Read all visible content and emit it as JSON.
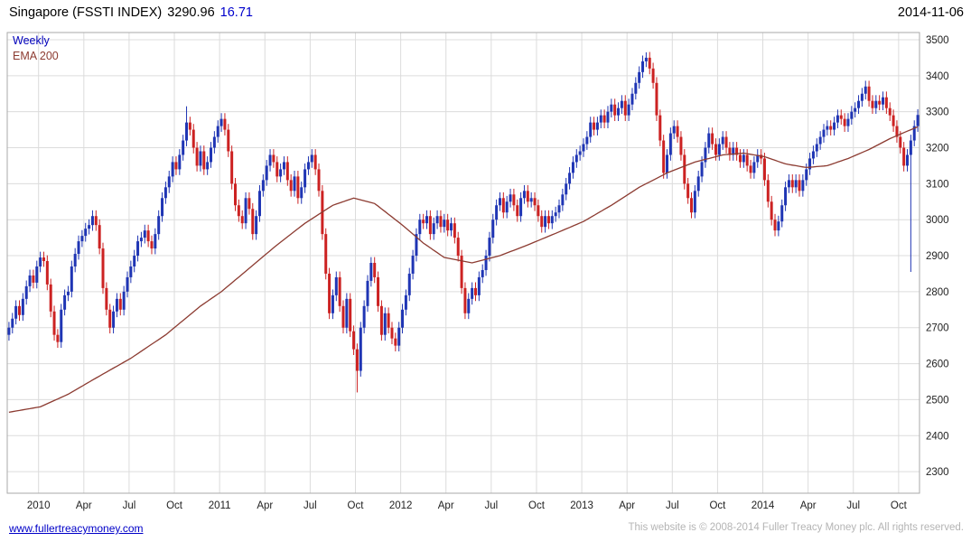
{
  "header": {
    "title": "Singapore (FSSTI INDEX)",
    "price": "3290.96",
    "change": "16.71",
    "date": "2014-11-06"
  },
  "legend": {
    "timeframe": "Weekly",
    "ema": "EMA 200"
  },
  "footer": {
    "link": "www.fullertreacymoney.com",
    "copyright": "This website is © 2008-2014 Fuller Treacy Money plc. All rights reserved."
  },
  "chart_data": {
    "type": "candlestick",
    "title": "Singapore (FSSTI INDEX)",
    "timeframe": "Weekly",
    "last_price": 3290.96,
    "change": 16.71,
    "as_of_date": "2014-11-06",
    "legend_entries": [
      "Weekly",
      "EMA 200"
    ],
    "y_axis": {
      "ticks": [
        2300,
        2400,
        2500,
        2600,
        2700,
        2800,
        2900,
        3000,
        3100,
        3200,
        3300,
        3400,
        3500
      ],
      "range": [
        2240,
        3520
      ],
      "side": "right"
    },
    "x_axis": {
      "tick_labels": [
        "2010",
        "Apr",
        "Jul",
        "Oct",
        "2011",
        "Apr",
        "Jul",
        "Oct",
        "2012",
        "Apr",
        "Jul",
        "Oct",
        "2013",
        "Apr",
        "Jul",
        "Oct",
        "2014",
        "Apr",
        "Jul",
        "Oct"
      ],
      "tick_weeks": [
        9,
        22,
        35,
        48,
        61,
        74,
        87,
        100,
        113,
        126,
        139,
        152,
        165,
        178,
        191,
        204,
        217,
        230,
        243,
        256
      ]
    },
    "grid": true,
    "weeks_total": 262,
    "first_open": 2680,
    "default_wick": 16,
    "weekly_closes": [
      2700,
      2725,
      2760,
      2735,
      2780,
      2815,
      2845,
      2825,
      2870,
      2895,
      2885,
      2820,
      2745,
      2680,
      2660,
      2750,
      2790,
      2800,
      2870,
      2905,
      2940,
      2955,
      2975,
      2985,
      3010,
      2985,
      2920,
      2810,
      2750,
      2700,
      2745,
      2780,
      2750,
      2800,
      2840,
      2870,
      2900,
      2940,
      2950,
      2970,
      2940,
      2920,
      2960,
      3010,
      3060,
      3090,
      3120,
      3160,
      3140,
      3180,
      3220,
      3270,
      3250,
      3200,
      3150,
      3190,
      3140,
      3160,
      3200,
      3230,
      3260,
      3280,
      3250,
      3190,
      3100,
      3040,
      3010,
      2990,
      3060,
      3030,
      2960,
      3010,
      3080,
      3110,
      3150,
      3180,
      3160,
      3120,
      3140,
      3160,
      3110,
      3080,
      3120,
      3060,
      3090,
      3140,
      3160,
      3180,
      3140,
      3080,
      2960,
      2850,
      2740,
      2790,
      2840,
      2760,
      2700,
      2780,
      2690,
      2640,
      2580,
      2700,
      2760,
      2830,
      2880,
      2840,
      2760,
      2680,
      2740,
      2700,
      2670,
      2650,
      2700,
      2750,
      2790,
      2850,
      2900,
      2960,
      3000,
      2990,
      3010,
      2960,
      2990,
      3010,
      2980,
      3000,
      2970,
      2990,
      2950,
      2900,
      2810,
      2740,
      2780,
      2810,
      2790,
      2840,
      2860,
      2900,
      2950,
      3000,
      3040,
      3060,
      3020,
      3050,
      3070,
      3040,
      3010,
      3060,
      3080,
      3050,
      3060,
      3040,
      3010,
      2980,
      3010,
      2990,
      3010,
      3020,
      3040,
      3070,
      3100,
      3130,
      3160,
      3180,
      3190,
      3210,
      3230,
      3270,
      3250,
      3270,
      3290,
      3270,
      3300,
      3320,
      3290,
      3310,
      3330,
      3290,
      3320,
      3350,
      3380,
      3410,
      3440,
      3450,
      3420,
      3380,
      3290,
      3220,
      3130,
      3180,
      3240,
      3260,
      3230,
      3180,
      3100,
      3060,
      3020,
      3080,
      3120,
      3160,
      3200,
      3240,
      3210,
      3180,
      3210,
      3230,
      3200,
      3180,
      3200,
      3180,
      3160,
      3180,
      3150,
      3130,
      3160,
      3180,
      3170,
      3110,
      3050,
      3000,
      2970,
      2995,
      3040,
      3090,
      3110,
      3090,
      3110,
      3080,
      3110,
      3140,
      3170,
      3190,
      3210,
      3230,
      3250,
      3260,
      3250,
      3270,
      3290,
      3280,
      3260,
      3280,
      3300,
      3310,
      3330,
      3350,
      3370,
      3330,
      3310,
      3330,
      3320,
      3340,
      3310,
      3290,
      3260,
      3230,
      3200,
      3150,
      3180,
      3220,
      3260,
      3290.96
    ],
    "wick_overrides": [
      {
        "i": 51,
        "high": 3315
      },
      {
        "i": 100,
        "low": 2520
      },
      {
        "i": 183,
        "high": 3465
      },
      {
        "i": 259,
        "low": 2855
      }
    ],
    "ema": {
      "label": "EMA 200",
      "period": 200,
      "anchors": [
        [
          0,
          2465
        ],
        [
          9,
          2480
        ],
        [
          17,
          2515
        ],
        [
          25,
          2560
        ],
        [
          35,
          2615
        ],
        [
          45,
          2680
        ],
        [
          55,
          2760
        ],
        [
          61,
          2800
        ],
        [
          69,
          2865
        ],
        [
          77,
          2930
        ],
        [
          85,
          2990
        ],
        [
          93,
          3040
        ],
        [
          99,
          3060
        ],
        [
          105,
          3045
        ],
        [
          113,
          2985
        ],
        [
          119,
          2935
        ],
        [
          125,
          2895
        ],
        [
          133,
          2880
        ],
        [
          141,
          2900
        ],
        [
          149,
          2930
        ],
        [
          157,
          2962
        ],
        [
          165,
          2995
        ],
        [
          173,
          3040
        ],
        [
          181,
          3090
        ],
        [
          189,
          3130
        ],
        [
          197,
          3160
        ],
        [
          205,
          3180
        ],
        [
          211,
          3185
        ],
        [
          217,
          3175
        ],
        [
          223,
          3155
        ],
        [
          229,
          3145
        ],
        [
          235,
          3150
        ],
        [
          241,
          3170
        ],
        [
          247,
          3195
        ],
        [
          253,
          3225
        ],
        [
          257,
          3242
        ],
        [
          261,
          3258
        ]
      ]
    },
    "colors": {
      "up": "#1f35b4",
      "down": "#cc2222",
      "ema": "#8c3b31",
      "grid": "#dcdcdc",
      "border": "#aaaaaa",
      "axis_text": "#222222"
    }
  }
}
